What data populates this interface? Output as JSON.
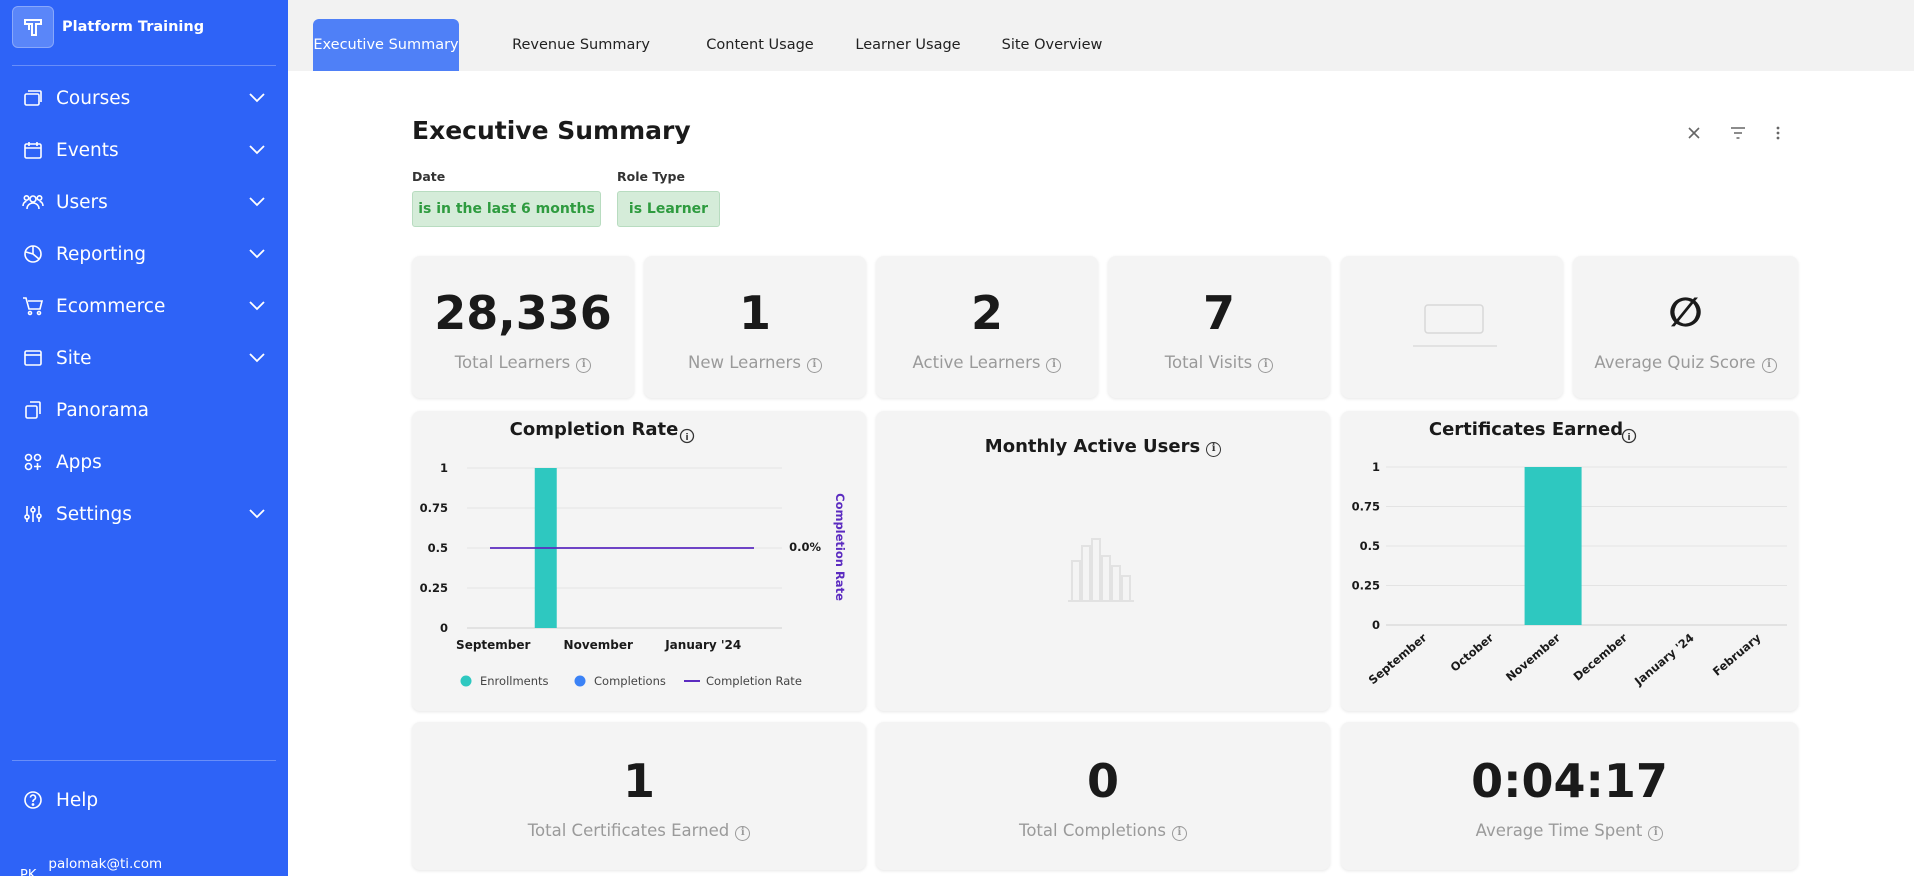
{
  "brand": {
    "name": "Platform Training"
  },
  "nav": {
    "courses": "Courses",
    "events": "Events",
    "users": "Users",
    "reporting": "Reporting",
    "ecommerce": "Ecommerce",
    "site": "Site",
    "panorama": "Panorama",
    "apps": "Apps",
    "settings": "Settings",
    "help": "Help"
  },
  "user": {
    "initials": "PK",
    "email": "palomak@ti.com"
  },
  "tabs": {
    "executive": "Executive Summary",
    "revenue": "Revenue Summary",
    "content": "Content Usage",
    "learner": "Learner Usage",
    "site": "Site Overview"
  },
  "page": {
    "title": "Executive Summary"
  },
  "filters": {
    "date_label": "Date",
    "date_value": "is in the last 6 months",
    "role_label": "Role Type",
    "role_value": "is Learner"
  },
  "kpis": {
    "total_learners": {
      "value": "28,336",
      "label": "Total Learners"
    },
    "new_learners": {
      "value": "1",
      "label": "New Learners"
    },
    "active_learners": {
      "value": "2",
      "label": "Active Learners"
    },
    "total_visits": {
      "value": "7",
      "label": "Total Visits"
    },
    "avg_quiz": {
      "value": "∅",
      "label": "Average Quiz Score"
    }
  },
  "monthly_active": {
    "title": "Monthly Active Users"
  },
  "bottom": {
    "certs": {
      "value": "1",
      "label": "Total Certificates Earned"
    },
    "completions": {
      "value": "0",
      "label": "Total Completions"
    },
    "time": {
      "value": "0:04:17",
      "label": "Average Time Spent"
    }
  },
  "colors": {
    "sidebar": "#2e63f7",
    "teal": "#2ec8c0",
    "purple": "#5b2bc0",
    "blue": "#3b82f6",
    "pill_green": "#2e9b3f"
  },
  "chart_data": [
    {
      "type": "bar",
      "title": "Completion Rate",
      "x_tick_labels": [
        "September",
        "November",
        "January '24"
      ],
      "categories": [
        "September",
        "October",
        "November",
        "December",
        "January '24",
        "February"
      ],
      "series": [
        {
          "name": "Enrollments",
          "values": [
            0,
            1,
            0,
            0,
            0,
            0
          ]
        },
        {
          "name": "Completions",
          "values": [
            0,
            0,
            0,
            0,
            0,
            0
          ]
        }
      ],
      "line_series": {
        "name": "Completion Rate",
        "value_label": "0.0%"
      },
      "y2label": "Completion Rate",
      "y_ticks": [
        "1",
        "0.75",
        "0.5",
        "0.25",
        "0"
      ],
      "ylim": [
        0,
        1
      ],
      "legend": [
        "Enrollments",
        "Completions",
        "Completion Rate"
      ],
      "legend_position": "bottom",
      "grid": true
    },
    {
      "type": "bar",
      "title": "Certificates Earned",
      "categories": [
        "September",
        "October",
        "November",
        "December",
        "January '24",
        "February"
      ],
      "values": [
        0,
        0,
        1,
        0,
        0,
        0
      ],
      "y_ticks": [
        "1",
        "0.75",
        "0.5",
        "0.25",
        "0"
      ],
      "ylim": [
        0,
        1
      ],
      "grid": true
    }
  ]
}
